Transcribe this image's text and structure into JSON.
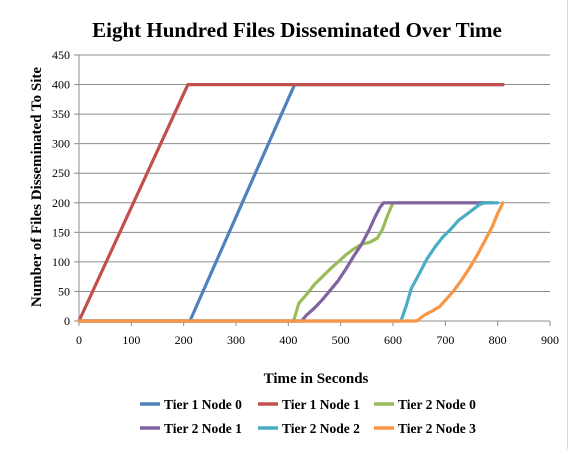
{
  "chart_data": {
    "type": "line",
    "title": "Eight Hundred Files Disseminated Over Time",
    "xlabel": "Time in Seconds",
    "ylabel": "Number of Files Disseminated To Site",
    "xlim": [
      0,
      900
    ],
    "ylim": [
      0,
      450
    ],
    "x_ticks": [
      0,
      100,
      200,
      300,
      400,
      500,
      600,
      700,
      800,
      900
    ],
    "y_ticks": [
      0,
      50,
      100,
      150,
      200,
      250,
      300,
      350,
      400,
      450
    ],
    "grid": "horizontal",
    "legend_position": "bottom",
    "series": [
      {
        "name": "Tier 1 Node 0",
        "color": "#4F81BD",
        "points": [
          [
            0,
            0
          ],
          [
            212,
            0
          ],
          [
            412,
            400
          ],
          [
            810,
            400
          ]
        ]
      },
      {
        "name": "Tier 1 Node 1",
        "color": "#C0504D",
        "points": [
          [
            0,
            0
          ],
          [
            208,
            400
          ],
          [
            810,
            400
          ]
        ]
      },
      {
        "name": "Tier 2 Node 0",
        "color": "#9BBB59",
        "points": [
          [
            0,
            0
          ],
          [
            410,
            0
          ],
          [
            420,
            30
          ],
          [
            435,
            45
          ],
          [
            450,
            62
          ],
          [
            465,
            75
          ],
          [
            480,
            88
          ],
          [
            495,
            100
          ],
          [
            510,
            112
          ],
          [
            525,
            122
          ],
          [
            540,
            130
          ],
          [
            555,
            133
          ],
          [
            570,
            140
          ],
          [
            580,
            155
          ],
          [
            588,
            175
          ],
          [
            595,
            190
          ],
          [
            600,
            200
          ],
          [
            790,
            200
          ]
        ]
      },
      {
        "name": "Tier 2 Node 1",
        "color": "#8064A2",
        "points": [
          [
            0,
            0
          ],
          [
            425,
            0
          ],
          [
            435,
            10
          ],
          [
            450,
            22
          ],
          [
            465,
            36
          ],
          [
            480,
            52
          ],
          [
            495,
            68
          ],
          [
            510,
            88
          ],
          [
            525,
            110
          ],
          [
            540,
            130
          ],
          [
            555,
            155
          ],
          [
            565,
            175
          ],
          [
            575,
            192
          ],
          [
            582,
            200
          ],
          [
            790,
            200
          ]
        ]
      },
      {
        "name": "Tier 2 Node 2",
        "color": "#4BACC6",
        "points": [
          [
            0,
            0
          ],
          [
            615,
            0
          ],
          [
            625,
            25
          ],
          [
            635,
            55
          ],
          [
            650,
            80
          ],
          [
            665,
            105
          ],
          [
            680,
            125
          ],
          [
            695,
            142
          ],
          [
            710,
            155
          ],
          [
            725,
            170
          ],
          [
            740,
            180
          ],
          [
            755,
            190
          ],
          [
            765,
            197
          ],
          [
            775,
            200
          ],
          [
            800,
            200
          ]
        ]
      },
      {
        "name": "Tier 2 Node 3",
        "color": "#F79646",
        "points": [
          [
            0,
            0
          ],
          [
            645,
            0
          ],
          [
            660,
            10
          ],
          [
            675,
            17
          ],
          [
            690,
            25
          ],
          [
            700,
            35
          ],
          [
            715,
            50
          ],
          [
            730,
            68
          ],
          [
            745,
            88
          ],
          [
            760,
            110
          ],
          [
            775,
            135
          ],
          [
            790,
            160
          ],
          [
            800,
            182
          ],
          [
            810,
            200
          ]
        ]
      }
    ]
  }
}
